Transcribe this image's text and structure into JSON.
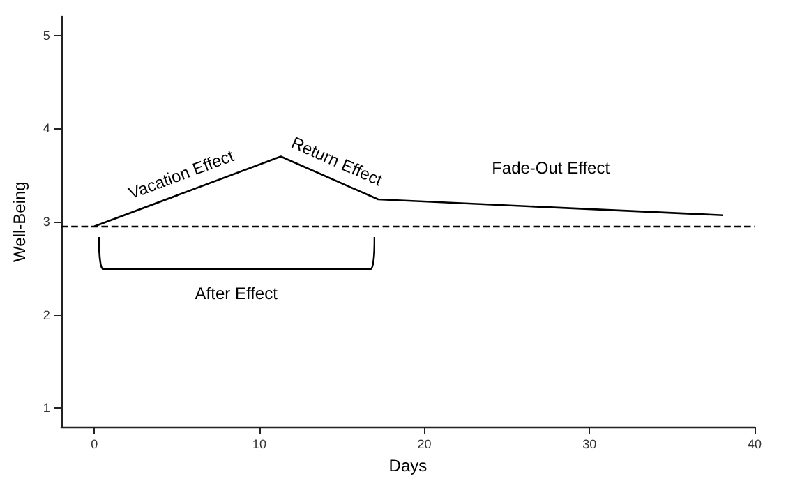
{
  "chart_data": {
    "type": "line",
    "xlabel": "Days",
    "ylabel": "Well-Being",
    "series": [
      {
        "color": "#000000",
        "x": [
          0,
          11.3,
          17.2,
          38.1
        ],
        "values": [
          2.95,
          3.7,
          3.24,
          3.07
        ]
      }
    ],
    "xlim": [
      -2,
      40
    ],
    "xticks": [
      0,
      10,
      20,
      30,
      40
    ],
    "ylim": [
      0.8,
      5.2
    ],
    "yticks": [
      1,
      2,
      3,
      4,
      5
    ],
    "ref_lines": [
      {
        "axis": "y",
        "value": 2.95,
        "color": "#000000",
        "line_style": "dashed"
      }
    ],
    "annotations": [
      "Vacation Effect",
      "Return Effect",
      "Fade-Out Effect",
      "After Effect"
    ],
    "grid": false,
    "marker": "none",
    "line_style": "solid"
  }
}
